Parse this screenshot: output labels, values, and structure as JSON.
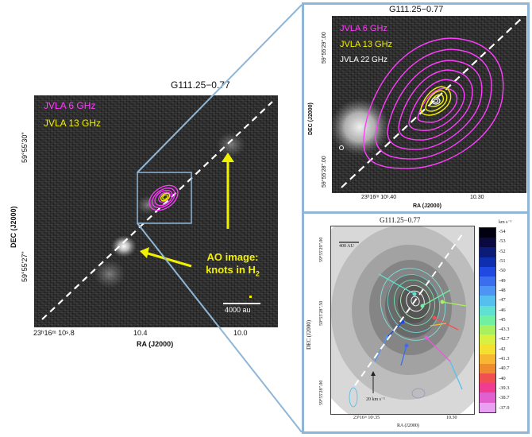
{
  "left_panel": {
    "title": "G111.25−0.77",
    "legend_6ghz": "JVLA 6 GHz",
    "legend_13ghz": "JVLA 13 GHz",
    "annotation_line1": "AO image:",
    "annotation_line2": "knots in H",
    "annotation_sub": "2",
    "scalebar_label": "4000 au",
    "dec_axis_label": "DEC (J2000)",
    "ra_axis_label": "RA (J2000)",
    "dec_tick_1": "59°55'30\"",
    "dec_tick_2": "59°55'27\"",
    "ra_tick_1": "23ʰ16ᵐ 10ˢ.8",
    "ra_tick_2": "10.4",
    "ra_tick_3": "10.0"
  },
  "top_right_panel": {
    "title": "G111.25−0.77",
    "legend_6ghz": "JVLA 6 GHz",
    "legend_13ghz": "JVLA 13 GHz",
    "legend_22ghz": "JVLA 22 GHz",
    "dec_axis_label": "DEC (J2000)",
    "ra_axis_label": "RA (J2000)",
    "dec_tick_1": "59°55'29\".00",
    "dec_tick_2": "59°55'28\".00",
    "ra_tick_1": "23ʰ16ᵐ 10ˢ.40",
    "ra_tick_2": "10.30"
  },
  "bottom_right_panel": {
    "title": "G111.25−0.77",
    "scalebar_label": "400 AU",
    "vector_label": "20 km s⁻¹",
    "dec_axis_label": "DEC (J2000)",
    "ra_axis_label": "RA (J2000)",
    "dec_tick_1": "59°55'29\".00",
    "dec_tick_2": "59°55'28\".50",
    "dec_tick_3": "59°55'28\".00",
    "ra_tick_1": "23ʰ16ᵐ 10ˢ.35",
    "ra_tick_2": "10.30",
    "colorbar_unit": "km s⁻¹",
    "colorbar_values": [
      "-54",
      "-53",
      "-52",
      "-51",
      "-50",
      "-49",
      "-48",
      "-47",
      "-46",
      "-45",
      "-43.3",
      "-42.7",
      "-42",
      "-41.3",
      "-40.7",
      "-40",
      "-39.3",
      "-38.7",
      "-37.9"
    ],
    "colorbar_colors": [
      "#000010",
      "#0a0a40",
      "#0a1c78",
      "#0d2fb0",
      "#1f49e0",
      "#3a6df0",
      "#4d94f5",
      "#55c0f0",
      "#5fe0d0",
      "#70f0a0",
      "#a8f060",
      "#d8f040",
      "#f5e030",
      "#f5b830",
      "#f08c30",
      "#f05050",
      "#f03c90",
      "#e060d0",
      "#e8a0f0"
    ]
  },
  "colors": {
    "frame": "#8fb6d6",
    "magenta": "#ff3cff",
    "yellow": "#f0f000"
  }
}
